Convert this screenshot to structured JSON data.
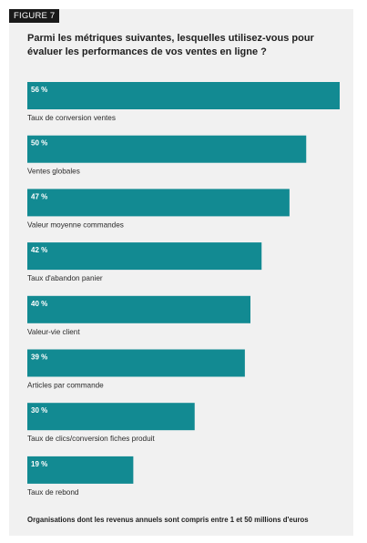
{
  "figure_label": "FIGURE 7",
  "title": "Parmi les métriques suivantes, lesquelles utilisez-vous pour évaluer les performances de vos ventes en ligne ?",
  "footnote": "Organisations dont les revenus annuels sont compris entre 1 et 50 millions d'euros",
  "colors": {
    "bar": "#128a92",
    "panel": "#f1f1f1",
    "tag": "#1a1a1a"
  },
  "chart_data": {
    "type": "bar",
    "orientation": "horizontal",
    "categories": [
      "Taux de conversion ventes",
      "Ventes globales",
      "Valeur moyenne commandes",
      "Taux d'abandon panier",
      "Valeur-vie client",
      "Articles par commande",
      "Taux de clics/conversion fiches produit",
      "Taux de rebond"
    ],
    "values": [
      56,
      50,
      47,
      42,
      40,
      39,
      30,
      19
    ],
    "value_labels": [
      "56 %",
      "50 %",
      "47 %",
      "42 %",
      "40 %",
      "39 %",
      "30 %",
      "19 %"
    ],
    "unit": "%",
    "xlim": [
      0,
      56
    ],
    "grid": false,
    "legend": "none"
  }
}
